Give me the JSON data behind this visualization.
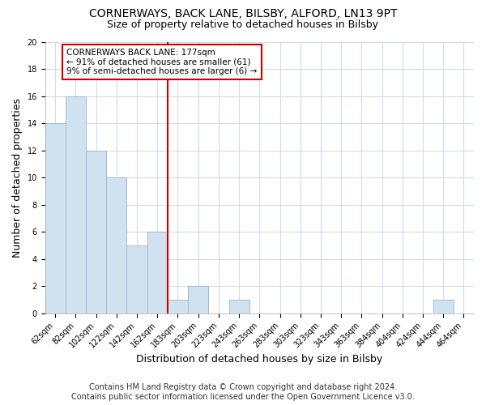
{
  "title1": "CORNERWAYS, BACK LANE, BILSBY, ALFORD, LN13 9PT",
  "title2": "Size of property relative to detached houses in Bilsby",
  "xlabel": "Distribution of detached houses by size in Bilsby",
  "ylabel": "Number of detached properties",
  "bar_labels": [
    "62sqm",
    "82sqm",
    "102sqm",
    "122sqm",
    "142sqm",
    "162sqm",
    "183sqm",
    "203sqm",
    "223sqm",
    "243sqm",
    "263sqm",
    "283sqm",
    "303sqm",
    "323sqm",
    "343sqm",
    "363sqm",
    "384sqm",
    "404sqm",
    "424sqm",
    "444sqm",
    "464sqm"
  ],
  "bar_values": [
    14,
    16,
    12,
    10,
    5,
    6,
    1,
    2,
    0,
    1,
    0,
    0,
    0,
    0,
    0,
    0,
    0,
    0,
    0,
    1,
    0
  ],
  "bar_color": "#d0e2f0",
  "bar_edge_color": "#a0bcd8",
  "vline_bin_index": 6,
  "property_label": "CORNERWAYS BACK LANE: 177sqm",
  "annotation_line1": "← 91% of detached houses are smaller (61)",
  "annotation_line2": "9% of semi-detached houses are larger (6) →",
  "annotation_box_color": "#ffffff",
  "annotation_box_edge": "#cc0000",
  "vline_color": "#cc0000",
  "ylim": [
    0,
    20
  ],
  "yticks": [
    0,
    2,
    4,
    6,
    8,
    10,
    12,
    14,
    16,
    18,
    20
  ],
  "footer1": "Contains HM Land Registry data © Crown copyright and database right 2024.",
  "footer2": "Contains public sector information licensed under the Open Government Licence v3.0.",
  "background_color": "#ffffff",
  "plot_bg_color": "#ffffff",
  "grid_color": "#d0dce8",
  "title_fontsize": 10,
  "subtitle_fontsize": 9,
  "axis_fontsize": 9,
  "tick_fontsize": 7,
  "annotation_fontsize": 7.5,
  "footer_fontsize": 7
}
